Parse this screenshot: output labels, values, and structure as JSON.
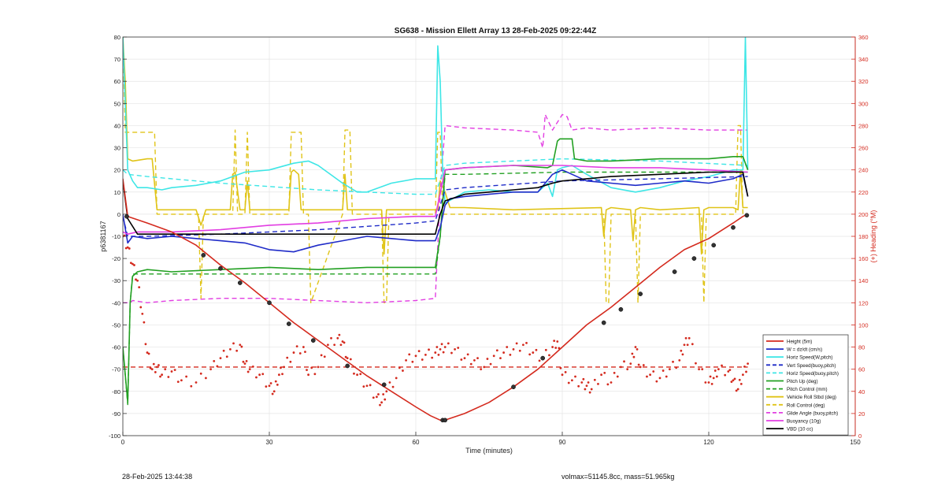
{
  "chart_data": {
    "type": "line",
    "title": "SG638 - Mission Ellett Array 13 28-Feb-2025 09:22:44Z",
    "xlabel": "Time (minutes)",
    "ylabel": "p6381167",
    "y2label": "(+) Heading (°M)",
    "xlim": [
      0,
      150
    ],
    "ylim": [
      -100,
      80
    ],
    "y2lim": [
      0,
      360
    ],
    "xticks": [
      0,
      30,
      60,
      90,
      120,
      150
    ],
    "yticks": [
      -100,
      -90,
      -80,
      -70,
      -60,
      -50,
      -40,
      -30,
      -20,
      -10,
      0,
      10,
      20,
      30,
      40,
      50,
      60,
      70,
      80
    ],
    "y2ticks": [
      0,
      20,
      40,
      60,
      80,
      100,
      120,
      140,
      160,
      180,
      200,
      220,
      240,
      260,
      280,
      300,
      320,
      340,
      360
    ],
    "grid": true,
    "legend_position": "bottom-right",
    "colors": {
      "height": "#d42a1e",
      "w": "#1f2bc8",
      "horiz_speed": "#3ee6e6",
      "pitch": "#22a022",
      "roll": "#e0c418",
      "glide": "#e23ee2",
      "buoyancy": "#e23ee2",
      "vbd": "#000000",
      "heading": "#d42a1e",
      "right_axis": "#d42a1e"
    },
    "series": [
      {
        "key": "height",
        "name": "Height (5m)",
        "style": "solid",
        "axis": "left",
        "x": [
          0,
          1,
          5,
          10,
          15,
          20,
          25,
          30,
          35,
          40,
          45,
          50,
          55,
          60,
          63,
          65,
          66,
          70,
          75,
          80,
          85,
          90,
          95,
          100,
          105,
          110,
          115,
          120,
          125,
          127,
          128
        ],
        "y": [
          16,
          -1,
          -4,
          -8,
          -14,
          -23,
          -31,
          -40,
          -49,
          -57,
          -65,
          -73,
          -80,
          -87,
          -91,
          -93,
          -93,
          -90,
          -85,
          -78,
          -70,
          -60,
          -50,
          -42,
          -33,
          -24,
          -16,
          -11,
          -4,
          -1,
          0
        ]
      },
      {
        "key": "w",
        "name": "W = dz/dt (cm/s)",
        "style": "solid",
        "axis": "left",
        "x": [
          0,
          1,
          2,
          5,
          10,
          15,
          20,
          25,
          30,
          35,
          40,
          45,
          50,
          55,
          60,
          64,
          65,
          66,
          67,
          70,
          75,
          80,
          85,
          88,
          90,
          92,
          95,
          100,
          105,
          110,
          115,
          120,
          125,
          127,
          128
        ],
        "y": [
          0,
          -13,
          -10,
          -11,
          -10,
          -11,
          -12,
          -13,
          -16,
          -17,
          -14,
          -12,
          -10,
          -11,
          -12,
          -12,
          -6,
          4,
          7,
          8,
          9,
          10,
          10,
          18,
          20,
          18,
          15,
          14,
          13,
          14,
          15,
          14,
          16,
          18,
          8
        ]
      },
      {
        "key": "horiz",
        "name": "Horiz Speed(W,pitch)",
        "style": "solid",
        "axis": "left",
        "x": [
          0,
          1,
          2,
          3,
          5,
          8,
          10,
          15,
          20,
          25,
          30,
          35,
          38,
          40,
          45,
          48,
          50,
          55,
          60,
          63,
          64,
          64.5,
          65,
          65.5,
          66,
          70,
          75,
          80,
          85,
          87,
          88,
          89,
          90,
          92,
          95,
          100,
          105,
          110,
          115,
          120,
          125,
          127,
          127.5,
          128
        ],
        "y": [
          80,
          20,
          15,
          12,
          12,
          11,
          12,
          13,
          15,
          19,
          20,
          23,
          24,
          22,
          14,
          10,
          10,
          14,
          16,
          16,
          16,
          76,
          60,
          20,
          5,
          10,
          11,
          10,
          10,
          14,
          8,
          20,
          21,
          22,
          18,
          12,
          10,
          12,
          15,
          17,
          20,
          20,
          80,
          20
        ]
      },
      {
        "key": "vert_dash",
        "name": "Vert Speed(buoy,pitch)",
        "style": "dashed",
        "axis": "left",
        "x": [
          0,
          1,
          5,
          20,
          40,
          60,
          64,
          66,
          70,
          90,
          110,
          128
        ],
        "y": [
          -1,
          -10,
          -10,
          -9,
          -7,
          -4,
          -3,
          11,
          12,
          15,
          16,
          17
        ]
      },
      {
        "key": "horiz_dash",
        "name": "Horiz Speed(buoy,pitch)",
        "style": "dashed",
        "axis": "left",
        "x": [
          0,
          1,
          5,
          20,
          40,
          60,
          64,
          66,
          70,
          90,
          110,
          128
        ],
        "y": [
          20,
          18,
          17,
          14,
          11,
          9,
          9,
          22,
          23,
          25,
          24,
          22
        ]
      },
      {
        "key": "pitch",
        "name": "Pitch Up (deg)",
        "style": "solid",
        "axis": "left",
        "x": [
          0,
          1,
          1.5,
          2,
          3,
          5,
          10,
          20,
          30,
          40,
          50,
          60,
          64,
          65,
          66,
          70,
          80,
          87,
          88,
          89,
          89.5,
          92,
          92.5,
          95,
          100,
          110,
          120,
          125,
          127,
          128
        ],
        "y": [
          -60,
          -85,
          -40,
          -28,
          -26,
          -25,
          -26,
          -25,
          -24,
          -25,
          -24,
          -24,
          -24,
          -10,
          20,
          21,
          22,
          21,
          22,
          33,
          34,
          34,
          25,
          24,
          24,
          25,
          25,
          26,
          26,
          20
        ]
      },
      {
        "key": "pitch_dash",
        "name": "Pitch Control (mm)",
        "style": "dashed",
        "axis": "left",
        "x": [
          0,
          1,
          1.5,
          2,
          5,
          20,
          40,
          60,
          64,
          65,
          66,
          70,
          90,
          110,
          128
        ],
        "y": [
          -60,
          -86,
          -40,
          -27,
          -27,
          -27,
          -27,
          -27,
          -27,
          -10,
          18,
          18,
          19,
          19,
          19
        ]
      },
      {
        "key": "roll",
        "name": "Vehicle Roll Stbd (deg)",
        "style": "solid",
        "axis": "left",
        "x": [
          0,
          0.5,
          1,
          2,
          5,
          6,
          7,
          8,
          15,
          16,
          17,
          18,
          20,
          22,
          22.5,
          23,
          24,
          25,
          25.5,
          26,
          30,
          34,
          34.5,
          35,
          36,
          36.5,
          37,
          45,
          45.5,
          46,
          47,
          53,
          53.5,
          54,
          55,
          64,
          64.5,
          65,
          66,
          67,
          70,
          80,
          98,
          98.5,
          99,
          100,
          104,
          104.5,
          105,
          106,
          110,
          118,
          118.5,
          119,
          120,
          125,
          126,
          126.5,
          127,
          128
        ],
        "y": [
          80,
          60,
          25,
          24,
          25,
          25,
          2,
          2,
          2,
          -5,
          2,
          2,
          2,
          2,
          18,
          19,
          2,
          2,
          15,
          2,
          2,
          2,
          19,
          20,
          18,
          2,
          2,
          2,
          18,
          2,
          2,
          2,
          -18,
          2,
          2,
          2,
          2,
          15,
          10,
          3,
          3,
          2,
          3,
          -10,
          2,
          3,
          2,
          -12,
          2,
          3,
          2,
          3,
          -18,
          2,
          3,
          3,
          2,
          20,
          3,
          3
        ]
      },
      {
        "key": "roll_dash",
        "name": "Roll Control (deg)",
        "style": "dashed",
        "axis": "left",
        "x": [
          0,
          0.5,
          1,
          2,
          6.5,
          7,
          15.5,
          16,
          16.5,
          22.5,
          23,
          23.5,
          25,
          25.5,
          26,
          34,
          34.5,
          36.5,
          37,
          38,
          38.5,
          45,
          45.5,
          46.5,
          47,
          53,
          53.5,
          54,
          54.5,
          64,
          64.5,
          65,
          65.5,
          66,
          90,
          98.5,
          99,
          99.5,
          100,
          105,
          105.5,
          106,
          118.5,
          119,
          119.5,
          125.5,
          126,
          126.5,
          127,
          128
        ],
        "y": [
          80,
          37,
          37,
          37,
          37,
          0,
          0,
          -38,
          0,
          0,
          38,
          0,
          0,
          37,
          0,
          0,
          37,
          37,
          0,
          0,
          -40,
          0,
          38,
          38,
          0,
          0,
          -40,
          -40,
          0,
          0,
          37,
          37,
          0,
          0,
          0,
          0,
          -40,
          -40,
          0,
          0,
          -40,
          0,
          0,
          -40,
          0,
          0,
          40,
          40,
          0,
          0
        ]
      },
      {
        "key": "glide",
        "name": "Glide Angle (buoy,pitch)",
        "style": "dashed",
        "axis": "left",
        "x": [
          0,
          1,
          1.5,
          2,
          5,
          10,
          20,
          30,
          40,
          50,
          60,
          64,
          65,
          66,
          70,
          80,
          85,
          86,
          86.5,
          88,
          90,
          91,
          92,
          95,
          100,
          110,
          120,
          128
        ],
        "y": [
          -40,
          -40,
          -40,
          -39,
          -40,
          -39,
          -38,
          -38,
          -39,
          -40,
          -39,
          -38,
          10,
          40,
          39,
          38,
          37,
          30,
          45,
          38,
          45,
          44,
          38,
          39,
          38,
          39,
          38,
          38
        ]
      },
      {
        "key": "buoyancy",
        "name": "Buoyancy (10g)",
        "style": "solid",
        "axis": "left",
        "x": [
          0,
          1,
          3,
          10,
          20,
          30,
          40,
          50,
          60,
          64,
          66,
          70,
          80,
          90,
          100,
          110,
          120,
          128
        ],
        "y": [
          -8,
          -9,
          -8,
          -8,
          -7,
          -5,
          -4,
          -2,
          -1,
          -1,
          20,
          21,
          22,
          22,
          21,
          21,
          20,
          19
        ]
      },
      {
        "key": "vbd",
        "name": "VBD (10 cc)",
        "style": "solid",
        "axis": "left",
        "x": [
          0,
          1,
          3,
          10,
          20,
          30,
          40,
          50,
          60,
          64,
          65,
          66,
          70,
          75,
          80,
          85,
          88,
          90,
          95,
          100,
          110,
          120,
          127,
          128
        ],
        "y": [
          15,
          -2,
          -9,
          -9,
          -9,
          -9,
          -9,
          -9,
          -9,
          -9,
          0,
          6,
          9,
          10,
          11,
          12,
          14,
          15,
          16,
          17,
          18,
          19,
          19,
          8
        ]
      },
      {
        "key": "heading",
        "name": "Heading",
        "style": "dotted",
        "axis": "right",
        "x": [
          0,
          1,
          2,
          3,
          4,
          5,
          6,
          7,
          8,
          10,
          12,
          15,
          18,
          20,
          22,
          24,
          25,
          26,
          28,
          30,
          31,
          32,
          33,
          35,
          37,
          38,
          40,
          42,
          44,
          45,
          46,
          48,
          50,
          52,
          53,
          54,
          56,
          58,
          60,
          62,
          64,
          65,
          66,
          68,
          70,
          72,
          74,
          76,
          78,
          80,
          82,
          84,
          86,
          88,
          89,
          90,
          92,
          94,
          95,
          96,
          98,
          100,
          102,
          104,
          105,
          106,
          108,
          110,
          112,
          114,
          115,
          116,
          118,
          120,
          121,
          122,
          124,
          125,
          126,
          127,
          128
        ],
        "y": [
          180,
          170,
          155,
          140,
          110,
          75,
          60,
          62,
          55,
          58,
          50,
          48,
          60,
          70,
          78,
          82,
          65,
          60,
          55,
          45,
          40,
          55,
          62,
          75,
          80,
          55,
          62,
          82,
          88,
          85,
          70,
          55,
          45,
          35,
          30,
          40,
          52,
          68,
          72,
          73,
          75,
          78,
          80,
          78,
          70,
          68,
          62,
          72,
          75,
          78,
          82,
          75,
          70,
          80,
          85,
          55,
          50,
          48,
          45,
          42,
          55,
          48,
          62,
          65,
          80,
          62,
          55,
          52,
          60,
          68,
          82,
          88,
          60,
          48,
          52,
          60,
          58,
          50,
          42,
          55,
          65
        ]
      },
      {
        "key": "heading_mean",
        "name": "Heading (mean)",
        "style": "dashed",
        "axis": "right",
        "x": [
          0,
          128
        ],
        "y": [
          62,
          62
        ]
      }
    ],
    "markers": {
      "series": "height",
      "x": [
        0.8,
        16.5,
        20,
        24,
        30,
        34,
        39,
        46,
        53.5,
        65.5,
        66,
        80,
        86,
        98.5,
        102,
        106,
        113,
        117,
        121,
        125,
        127.8
      ],
      "y": [
        -1,
        -18.5,
        -24.5,
        -31,
        -40,
        -49.5,
        -57,
        -68.5,
        -77,
        -93,
        -93,
        -78,
        -65,
        -49,
        -43,
        -36,
        -26,
        -20,
        -14,
        -6,
        -0.5
      ]
    },
    "legend_entries": [
      {
        "key": "height",
        "label": "Height (5m)"
      },
      {
        "key": "w",
        "label": "W = dz/dt (cm/s)"
      },
      {
        "key": "horiz",
        "label": "Horiz Speed(W,pitch)"
      },
      {
        "key": "vert_dash",
        "label": "Vert Speed(buoy,pitch)"
      },
      {
        "key": "horiz_dash",
        "label": "Horiz Speed(buoy,pitch)"
      },
      {
        "key": "pitch",
        "label": "Pitch Up (deg)"
      },
      {
        "key": "pitch_dash",
        "label": "Pitch Control (mm)"
      },
      {
        "key": "roll",
        "label": "Vehicle Roll Stbd (deg)"
      },
      {
        "key": "roll_dash",
        "label": "Roll Control (deg)"
      },
      {
        "key": "glide",
        "label": "Glide Angle (buoy,pitch)"
      },
      {
        "key": "buoyancy",
        "label": "Buoyancy (10g)"
      },
      {
        "key": "vbd",
        "label": "VBD (10 cc)"
      }
    ]
  },
  "footer": {
    "timestamp": "28-Feb-2025 13:44:38",
    "volmax": "volmax=51145.8cc, mass=51.965kg"
  }
}
